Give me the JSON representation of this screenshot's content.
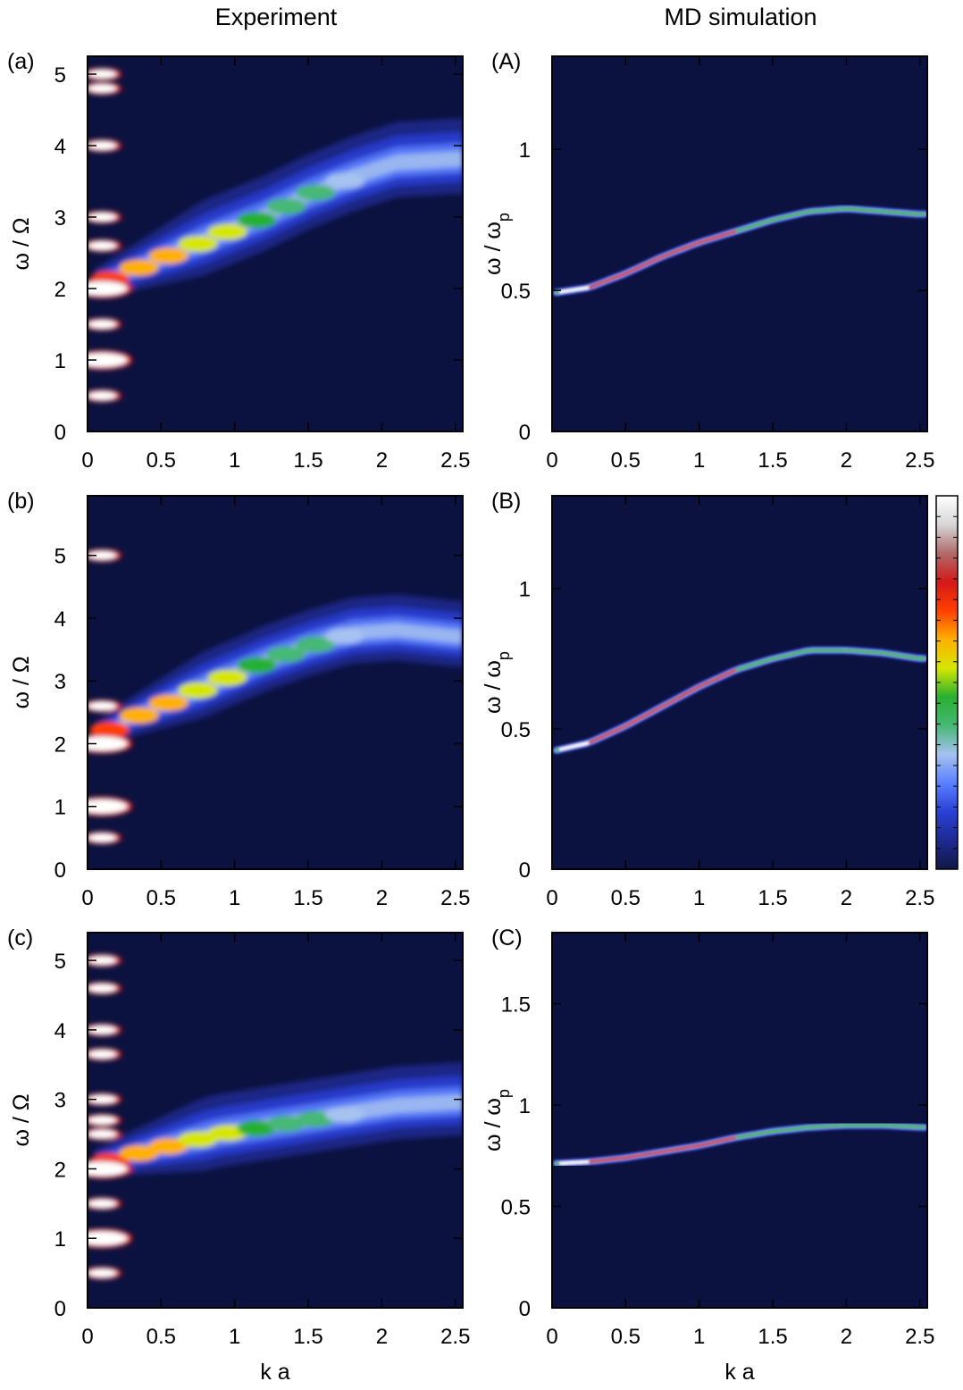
{
  "columns": {
    "left_title": "Experiment",
    "right_title": "MD simulation"
  },
  "colors": {
    "background": "#0c1240",
    "colormap": [
      "#111844",
      "#1d2a90",
      "#2a40d6",
      "#5a80ff",
      "#a6c2f0",
      "#46b874",
      "#28b030",
      "#d6e600",
      "#ffb000",
      "#ff4000",
      "#d41818",
      "#b06a6a",
      "#d6d6d6",
      "#ffffff"
    ]
  },
  "chart_data": [
    {
      "type": "heatmap",
      "panel": "(a)",
      "xlabel": "",
      "ylabel": "ω / Ω",
      "xlim": [
        0,
        2.55
      ],
      "ylim": [
        0,
        5.25
      ],
      "xticks": [
        0,
        0.5,
        1,
        1.5,
        2,
        2.5
      ],
      "xtick_labels": [
        "0",
        "0.5",
        "1",
        "1.5",
        "2",
        "2.5"
      ],
      "yticks": [
        0,
        1,
        2,
        3,
        4,
        5
      ],
      "ytick_labels": [
        "0",
        "1",
        "2",
        "3",
        "4",
        "5"
      ],
      "ridge": {
        "k": [
          0.05,
          0.3,
          0.6,
          0.9,
          1.2,
          1.5,
          1.8,
          2.1,
          2.5
        ],
        "omega": [
          2.05,
          2.25,
          2.5,
          2.75,
          3.0,
          3.3,
          3.55,
          3.75,
          3.8
        ]
      },
      "harmonics": [
        0.5,
        1,
        1.5,
        2,
        2.6,
        3,
        4,
        4.8,
        5
      ]
    },
    {
      "type": "heatmap",
      "panel": "(A)",
      "xlabel": "",
      "ylabel": "ω / ωp",
      "xlim": [
        0,
        2.55
      ],
      "ylim": [
        0,
        1.33
      ],
      "xticks": [
        0,
        0.5,
        1,
        1.5,
        2,
        2.5
      ],
      "xtick_labels": [
        "0",
        "0.5",
        "1",
        "1.5",
        "2",
        "2.5"
      ],
      "yticks": [
        0,
        0.5,
        1
      ],
      "ytick_labels": [
        "0",
        "0.5",
        "1"
      ],
      "ridge": {
        "k": [
          0,
          0.25,
          0.5,
          0.75,
          1.0,
          1.25,
          1.5,
          1.75,
          2.0,
          2.25,
          2.5
        ],
        "omega": [
          0.49,
          0.51,
          0.56,
          0.62,
          0.67,
          0.71,
          0.75,
          0.78,
          0.79,
          0.78,
          0.77
        ]
      }
    },
    {
      "type": "heatmap",
      "panel": "(b)",
      "xlabel": "",
      "ylabel": "ω / Ω",
      "xlim": [
        0,
        2.55
      ],
      "ylim": [
        0,
        5.95
      ],
      "xticks": [
        0,
        0.5,
        1,
        1.5,
        2,
        2.5
      ],
      "xtick_labels": [
        "0",
        "0.5",
        "1",
        "1.5",
        "2",
        "2.5"
      ],
      "yticks": [
        0,
        1,
        2,
        3,
        4,
        5
      ],
      "ytick_labels": [
        "0",
        "1",
        "2",
        "3",
        "4",
        "5"
      ],
      "ridge": {
        "k": [
          0.05,
          0.3,
          0.6,
          0.9,
          1.2,
          1.5,
          1.8,
          2.1,
          2.5
        ],
        "omega": [
          2.1,
          2.4,
          2.7,
          3.0,
          3.3,
          3.55,
          3.75,
          3.8,
          3.7
        ]
      },
      "harmonics": [
        0.5,
        1,
        2,
        2.6,
        5
      ]
    },
    {
      "type": "heatmap",
      "panel": "(B)",
      "xlabel": "",
      "ylabel": "ω / ωp",
      "xlim": [
        0,
        2.55
      ],
      "ylim": [
        0,
        1.33
      ],
      "xticks": [
        0,
        0.5,
        1,
        1.5,
        2,
        2.5
      ],
      "xtick_labels": [
        "0",
        "0.5",
        "1",
        "1.5",
        "2",
        "2.5"
      ],
      "yticks": [
        0,
        0.5,
        1
      ],
      "ytick_labels": [
        "0",
        "0.5",
        "1"
      ],
      "ridge": {
        "k": [
          0,
          0.25,
          0.5,
          0.75,
          1.0,
          1.25,
          1.5,
          1.75,
          2.0,
          2.25,
          2.5
        ],
        "omega": [
          0.42,
          0.45,
          0.51,
          0.58,
          0.65,
          0.71,
          0.75,
          0.78,
          0.78,
          0.77,
          0.75
        ]
      }
    },
    {
      "type": "heatmap",
      "panel": "(c)",
      "xlabel": "k a",
      "ylabel": "ω / Ω",
      "xlim": [
        0,
        2.55
      ],
      "ylim": [
        0,
        5.4
      ],
      "xticks": [
        0,
        0.5,
        1,
        1.5,
        2,
        2.5
      ],
      "xtick_labels": [
        "0",
        "0.5",
        "1",
        "1.5",
        "2",
        "2.5"
      ],
      "yticks": [
        0,
        1,
        2,
        3,
        4,
        5
      ],
      "ytick_labels": [
        "0",
        "1",
        "2",
        "3",
        "4",
        "5"
      ],
      "ridge": {
        "k": [
          0.05,
          0.3,
          0.6,
          0.9,
          1.2,
          1.5,
          1.8,
          2.1,
          2.5
        ],
        "omega": [
          2.05,
          2.2,
          2.35,
          2.5,
          2.6,
          2.7,
          2.8,
          2.9,
          2.95
        ]
      },
      "harmonics": [
        0.5,
        1,
        1.5,
        2,
        2.5,
        2.7,
        3,
        3.65,
        4,
        4.6,
        5
      ]
    },
    {
      "type": "heatmap",
      "panel": "(C)",
      "xlabel": "k a",
      "ylabel": "ω / ωp",
      "xlim": [
        0,
        2.55
      ],
      "ylim": [
        0,
        1.85
      ],
      "xticks": [
        0,
        0.5,
        1,
        1.5,
        2,
        2.5
      ],
      "xtick_labels": [
        "0",
        "0.5",
        "1",
        "1.5",
        "2",
        "2.5"
      ],
      "yticks": [
        0,
        0.5,
        1,
        1.5
      ],
      "ytick_labels": [
        "0",
        "0.5",
        "1",
        "1.5"
      ],
      "ridge": {
        "k": [
          0,
          0.25,
          0.5,
          0.75,
          1.0,
          1.25,
          1.5,
          1.75,
          2.0,
          2.25,
          2.5
        ],
        "omega": [
          0.71,
          0.72,
          0.74,
          0.77,
          0.8,
          0.84,
          0.87,
          0.89,
          0.9,
          0.9,
          0.89
        ]
      }
    }
  ]
}
